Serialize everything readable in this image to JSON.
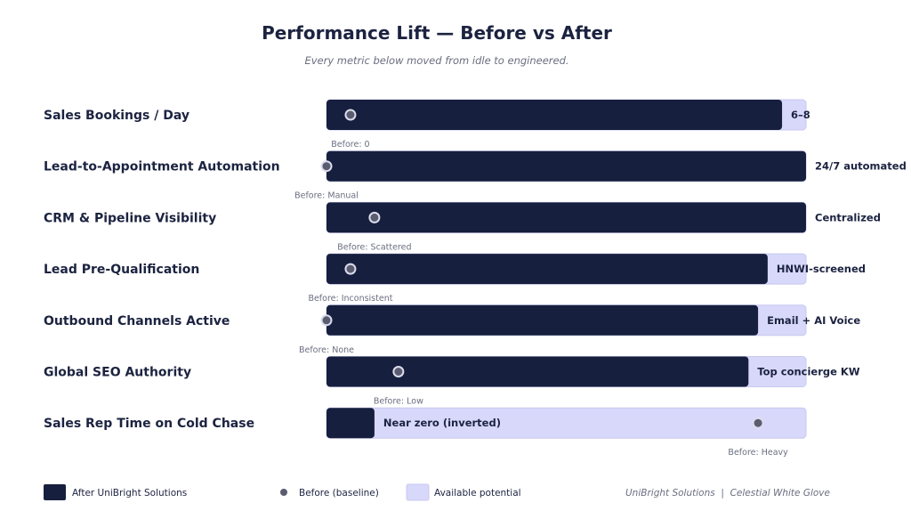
{
  "chart_data": {
    "type": "bar",
    "orientation": "horizontal",
    "title": "Performance Lift — Before vs After",
    "subtitle": "Every metric below moved from idle to engineered.",
    "xlim": [
      0,
      100
    ],
    "grid": false,
    "categories": [
      "Sales Bookings / Day",
      "Lead-to-Appointment Automation",
      "CRM & Pipeline Visibility",
      "Lead Pre-Qualification",
      "Outbound Channels Active",
      "Global SEO Authority",
      "Sales Rep Time on Cold Chase"
    ],
    "series": [
      {
        "name": "After UniBright Solutions",
        "values": [
          95,
          100,
          100,
          92,
          90,
          88,
          10
        ],
        "labels": [
          "6–8",
          "24/7 automated",
          "Centralized",
          "HNWI-screened",
          "Email + AI Voice",
          "Top concierge KW",
          "Near zero (inverted)"
        ]
      },
      {
        "name": "Before (baseline)",
        "values": [
          5,
          0,
          10,
          5,
          0,
          15,
          90
        ],
        "labels": [
          "Before: 0",
          "Before: Manual",
          "Before: Scattered",
          "Before: Inconsistent",
          "Before: None",
          "Before: Low",
          "Before: Heavy"
        ]
      },
      {
        "name": "Available potential",
        "values": [
          100,
          100,
          100,
          100,
          100,
          100,
          100
        ]
      }
    ],
    "legend": {
      "placement": "bottom",
      "items": [
        {
          "label": "After UniBright Solutions",
          "marker": "square"
        },
        {
          "label": "Before (baseline)",
          "marker": "dot"
        },
        {
          "label": "Available potential",
          "marker": "square-light"
        }
      ]
    },
    "footer": "UniBright Solutions  |  Celestial White Glove",
    "colors": {
      "after": "#161f3d",
      "potential": "#d8d8fb",
      "potential_stroke": "#c8c8f0",
      "before_dot": "#5a5d70",
      "before_dot_stroke": "#dcdcec",
      "text": "#1c2340",
      "muted": "#6b6e80"
    }
  }
}
